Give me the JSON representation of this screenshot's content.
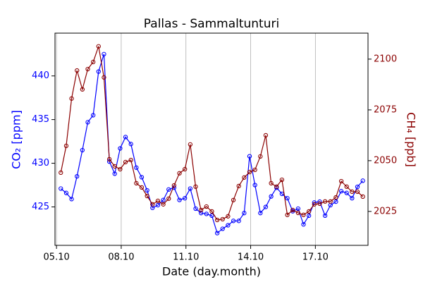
{
  "chart_data": {
    "type": "line",
    "title": "Pallas - Sammaltunturi",
    "xlabel": "Date (day.month)",
    "ylabel": "CO₂ [ppm]",
    "y2label": "CH₄ [ppb]",
    "x": [
      5.2,
      5.45,
      5.7,
      5.95,
      6.2,
      6.45,
      6.7,
      6.95,
      7.2,
      7.45,
      7.7,
      7.95,
      8.2,
      8.45,
      8.7,
      8.95,
      9.2,
      9.45,
      9.7,
      9.95,
      10.2,
      10.45,
      10.7,
      10.95,
      11.2,
      11.45,
      11.7,
      11.95,
      12.2,
      12.45,
      12.7,
      12.95,
      13.2,
      13.45,
      13.7,
      13.95,
      14.2,
      14.45,
      14.7,
      14.95,
      15.2,
      15.45,
      15.7,
      15.95,
      16.2,
      16.45,
      16.7,
      16.95,
      17.2,
      17.45,
      17.7,
      17.95,
      18.2,
      18.45,
      18.7,
      18.95,
      19.2
    ],
    "series": [
      {
        "name": "CO₂",
        "color": "#0000ff",
        "axis": "y",
        "values": [
          427.1,
          426.6,
          425.9,
          428.5,
          431.5,
          434.7,
          435.5,
          440.5,
          442.5,
          430.2,
          428.8,
          431.7,
          433.0,
          432.2,
          429.5,
          428.4,
          426.9,
          424.9,
          425.2,
          425.8,
          427.0,
          427.2,
          425.8,
          426.0,
          427.1,
          424.8,
          424.3,
          424.2,
          424.0,
          422.0,
          422.5,
          422.9,
          423.4,
          423.4,
          424.3,
          430.8,
          427.5,
          424.3,
          425.0,
          426.2,
          427.2,
          426.5,
          426.0,
          424.5,
          424.8,
          423.0,
          424.0,
          425.5,
          425.6,
          424.0,
          425.2,
          425.6,
          426.8,
          426.6,
          426.0,
          427.3,
          428.0
        ]
      },
      {
        "name": "CH₄",
        "color": "#8b0000",
        "axis": "y2",
        "values": [
          2044.1,
          2057.3,
          2080.6,
          2094.4,
          2085.1,
          2095.1,
          2098.6,
          2106.3,
          2091.0,
          2050.7,
          2047.2,
          2045.8,
          2049.3,
          2050.3,
          2038.9,
          2036.8,
          2032.6,
          2028.5,
          2030.2,
          2028.5,
          2031.3,
          2037.8,
          2043.8,
          2045.8,
          2058.0,
          2037.2,
          2025.7,
          2027.4,
          2025.0,
          2020.8,
          2021.2,
          2022.6,
          2030.6,
          2037.5,
          2041.7,
          2044.4,
          2045.5,
          2052.1,
          2062.5,
          2038.9,
          2037.2,
          2040.6,
          2023.3,
          2025.7,
          2024.3,
          2023.3,
          2025.0,
          2028.5,
          2028.8,
          2029.9,
          2029.9,
          2031.9,
          2039.9,
          2037.2,
          2034.7,
          2034.7,
          2032.3
        ]
      }
    ],
    "xlim": [
      4.93,
      19.44
    ],
    "xticks": [
      {
        "value": 5,
        "label": "05.10"
      },
      {
        "value": 8,
        "label": "08.10"
      },
      {
        "value": 11,
        "label": "11.10"
      },
      {
        "value": 14,
        "label": "14.10"
      },
      {
        "value": 17,
        "label": "17.10"
      }
    ],
    "ylim": [
      420.6,
      444.9
    ],
    "yticks": [
      425,
      430,
      435,
      440
    ],
    "y2lim": [
      2008.3,
      2112.8
    ],
    "y2ticks": [
      2025,
      2050,
      2075,
      2100
    ],
    "xgrid": true
  }
}
